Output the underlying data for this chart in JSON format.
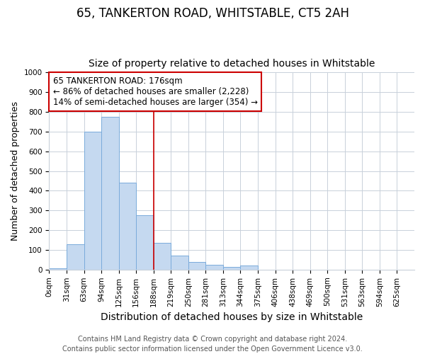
{
  "title": "65, TANKERTON ROAD, WHITSTABLE, CT5 2AH",
  "subtitle": "Size of property relative to detached houses in Whitstable",
  "xlabel": "Distribution of detached houses by size in Whitstable",
  "ylabel": "Number of detached properties",
  "bin_labels": [
    "0sqm",
    "31sqm",
    "63sqm",
    "94sqm",
    "125sqm",
    "156sqm",
    "188sqm",
    "219sqm",
    "250sqm",
    "281sqm",
    "313sqm",
    "344sqm",
    "375sqm",
    "406sqm",
    "438sqm",
    "469sqm",
    "500sqm",
    "531sqm",
    "563sqm",
    "594sqm",
    "625sqm"
  ],
  "bar_heights": [
    7,
    128,
    700,
    775,
    440,
    275,
    135,
    70,
    40,
    25,
    13,
    20,
    0,
    0,
    0,
    0,
    0,
    0,
    0,
    0,
    0
  ],
  "bar_color": "#c5d9f0",
  "bar_edgecolor": "#7aabdb",
  "vline_x_index": 6,
  "vline_color": "#cc0000",
  "annotation_text": "65 TANKERTON ROAD: 176sqm\n← 86% of detached houses are smaller (2,228)\n14% of semi-detached houses are larger (354) →",
  "annotation_box_edgecolor": "#cc0000",
  "ylim": [
    0,
    1000
  ],
  "yticks": [
    0,
    100,
    200,
    300,
    400,
    500,
    600,
    700,
    800,
    900,
    1000
  ],
  "footer": "Contains HM Land Registry data © Crown copyright and database right 2024.\nContains public sector information licensed under the Open Government Licence v3.0.",
  "bg_color": "#ffffff",
  "grid_color": "#c8d0da",
  "title_fontsize": 12,
  "subtitle_fontsize": 10,
  "xlabel_fontsize": 10,
  "ylabel_fontsize": 9,
  "tick_fontsize": 7.5,
  "annotation_fontsize": 8.5,
  "footer_fontsize": 7
}
